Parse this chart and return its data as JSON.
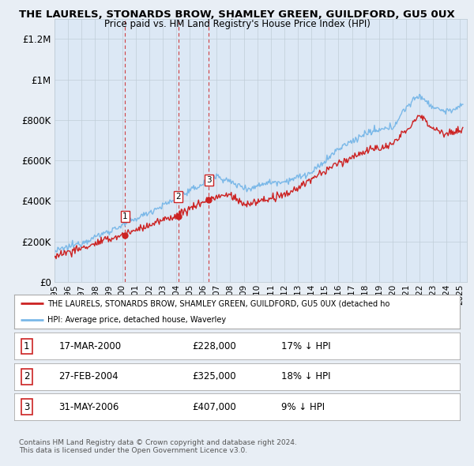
{
  "title_line1": "THE LAURELS, STONARDS BROW, SHAMLEY GREEN, GUILDFORD, GU5 0UX",
  "title_line2": "Price paid vs. HM Land Registry's House Price Index (HPI)",
  "ylabel_ticks": [
    "£0",
    "£200K",
    "£400K",
    "£600K",
    "£800K",
    "£1M",
    "£1.2M"
  ],
  "ytick_values": [
    0,
    200000,
    400000,
    600000,
    800000,
    1000000,
    1200000
  ],
  "ylim": [
    0,
    1300000
  ],
  "xlim_start": 1995.0,
  "xlim_end": 2025.5,
  "sale_dates": [
    2000.21,
    2004.16,
    2006.41
  ],
  "sale_prices": [
    228000,
    325000,
    407000
  ],
  "sale_labels": [
    "1",
    "2",
    "3"
  ],
  "hpi_color": "#7ab8e8",
  "price_color": "#cc2222",
  "marker_color": "#cc2222",
  "dashed_line_color": "#cc2222",
  "background_color": "#e8eef5",
  "plot_bg_color": "#dce8f5",
  "legend_label_red": "THE LAURELS, STONARDS BROW, SHAMLEY GREEN, GUILDFORD, GU5 0UX (detached ho",
  "legend_label_blue": "HPI: Average price, detached house, Waverley",
  "table_rows": [
    [
      "1",
      "17-MAR-2000",
      "£228,000",
      "17% ↓ HPI"
    ],
    [
      "2",
      "27-FEB-2004",
      "£325,000",
      "18% ↓ HPI"
    ],
    [
      "3",
      "31-MAY-2006",
      "£407,000",
      "9% ↓ HPI"
    ]
  ],
  "footer_text": "Contains HM Land Registry data © Crown copyright and database right 2024.\nThis data is licensed under the Open Government Licence v3.0.",
  "grid_color": "#c0cdd8",
  "spine_color": "#c0cdd8"
}
